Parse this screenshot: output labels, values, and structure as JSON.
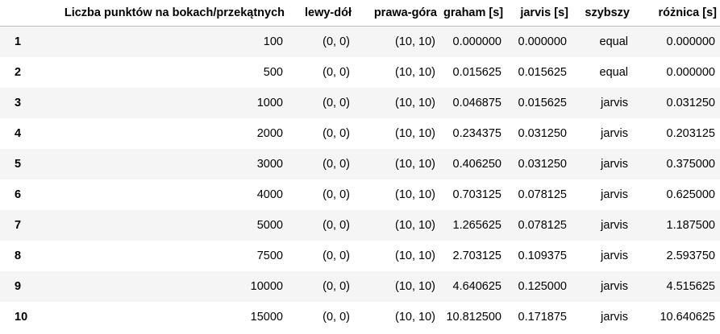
{
  "table": {
    "index_header": "",
    "columns": [
      "Liczba punktów na bokach/przekątnych",
      "lewy-dół",
      "prawa-góra",
      "graham [s]",
      "jarvis [s]",
      "szybszy",
      "różnica [s]"
    ],
    "rows": [
      {
        "index": "1",
        "cells": [
          "100",
          "(0, 0)",
          "(10, 10)",
          "0.000000",
          "0.000000",
          "equal",
          "0.000000"
        ]
      },
      {
        "index": "2",
        "cells": [
          "500",
          "(0, 0)",
          "(10, 10)",
          "0.015625",
          "0.015625",
          "equal",
          "0.000000"
        ]
      },
      {
        "index": "3",
        "cells": [
          "1000",
          "(0, 0)",
          "(10, 10)",
          "0.046875",
          "0.015625",
          "jarvis",
          "0.031250"
        ]
      },
      {
        "index": "4",
        "cells": [
          "2000",
          "(0, 0)",
          "(10, 10)",
          "0.234375",
          "0.031250",
          "jarvis",
          "0.203125"
        ]
      },
      {
        "index": "5",
        "cells": [
          "3000",
          "(0, 0)",
          "(10, 10)",
          "0.406250",
          "0.031250",
          "jarvis",
          "0.375000"
        ]
      },
      {
        "index": "6",
        "cells": [
          "4000",
          "(0, 0)",
          "(10, 10)",
          "0.703125",
          "0.078125",
          "jarvis",
          "0.625000"
        ]
      },
      {
        "index": "7",
        "cells": [
          "5000",
          "(0, 0)",
          "(10, 10)",
          "1.265625",
          "0.078125",
          "jarvis",
          "1.187500"
        ]
      },
      {
        "index": "8",
        "cells": [
          "7500",
          "(0, 0)",
          "(10, 10)",
          "2.703125",
          "0.109375",
          "jarvis",
          "2.593750"
        ]
      },
      {
        "index": "9",
        "cells": [
          "10000",
          "(0, 0)",
          "(10, 10)",
          "4.640625",
          "0.125000",
          "jarvis",
          "4.515625"
        ]
      },
      {
        "index": "10",
        "cells": [
          "15000",
          "(0, 0)",
          "(10, 10)",
          "10.812500",
          "0.171875",
          "jarvis",
          "10.640625"
        ]
      }
    ]
  }
}
